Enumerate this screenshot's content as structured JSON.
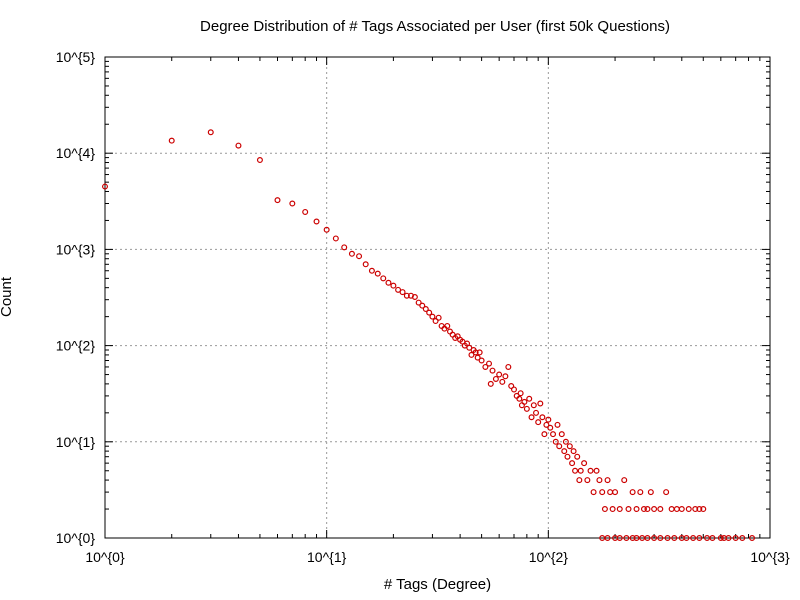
{
  "chart_data": {
    "type": "scatter",
    "title": "Degree Distribution of # Tags Associated per User (first 50k Questions)",
    "xlabel": "# Tags (Degree)",
    "ylabel": "Count",
    "xscale": "log",
    "yscale": "log",
    "xlim": [
      1,
      1000
    ],
    "ylim": [
      1,
      100000
    ],
    "grid": true,
    "xticks": [
      1,
      10,
      100,
      1000
    ],
    "yticks": [
      1,
      10,
      100,
      1000,
      10000,
      100000
    ],
    "xtick_labels": [
      "10^{0}",
      "10^{1}",
      "10^{2}",
      "10^{3}"
    ],
    "ytick_labels": [
      "10^{0}",
      "10^{1}",
      "10^{2}",
      "10^{3}",
      "10^{4}",
      "10^{5}"
    ],
    "colors": {
      "marker": "#cc0000",
      "grid": "#999999",
      "axis": "#000000"
    },
    "marker": "circle",
    "series": [
      {
        "points": [
          [
            1,
            4500
          ],
          [
            2,
            13500
          ],
          [
            3,
            16500
          ],
          [
            4,
            12000
          ],
          [
            5,
            8500
          ],
          [
            6,
            3250
          ],
          [
            7,
            3000
          ],
          [
            8,
            2450
          ],
          [
            9,
            1950
          ],
          [
            10,
            1600
          ],
          [
            11,
            1300
          ],
          [
            12,
            1050
          ],
          [
            13,
            900
          ],
          [
            14,
            850
          ],
          [
            15,
            700
          ],
          [
            16,
            600
          ],
          [
            17,
            560
          ],
          [
            18,
            500
          ],
          [
            19,
            450
          ],
          [
            20,
            420
          ],
          [
            21,
            380
          ],
          [
            22,
            360
          ],
          [
            23,
            330
          ],
          [
            24,
            330
          ],
          [
            25,
            320
          ],
          [
            26,
            280
          ],
          [
            27,
            260
          ],
          [
            28,
            240
          ],
          [
            29,
            220
          ],
          [
            30,
            200
          ],
          [
            31,
            180
          ],
          [
            32,
            195
          ],
          [
            33,
            160
          ],
          [
            34,
            150
          ],
          [
            35,
            160
          ],
          [
            36,
            140
          ],
          [
            37,
            130
          ],
          [
            38,
            120
          ],
          [
            39,
            125
          ],
          [
            40,
            115
          ],
          [
            41,
            110
          ],
          [
            42,
            100
          ],
          [
            43,
            105
          ],
          [
            44,
            95
          ],
          [
            45,
            80
          ],
          [
            46,
            90
          ],
          [
            47,
            85
          ],
          [
            48,
            75
          ],
          [
            49,
            85
          ],
          [
            50,
            70
          ],
          [
            52,
            60
          ],
          [
            54,
            65
          ],
          [
            55,
            40
          ],
          [
            56,
            55
          ],
          [
            58,
            45
          ],
          [
            60,
            50
          ],
          [
            62,
            42
          ],
          [
            64,
            48
          ],
          [
            66,
            60
          ],
          [
            68,
            38
          ],
          [
            70,
            35
          ],
          [
            72,
            30
          ],
          [
            74,
            28
          ],
          [
            75,
            32
          ],
          [
            76,
            24
          ],
          [
            78,
            26
          ],
          [
            80,
            22
          ],
          [
            82,
            28
          ],
          [
            84,
            18
          ],
          [
            86,
            24
          ],
          [
            88,
            20
          ],
          [
            90,
            16
          ],
          [
            92,
            25
          ],
          [
            94,
            18
          ],
          [
            96,
            12
          ],
          [
            98,
            15
          ],
          [
            100,
            17
          ],
          [
            102,
            14
          ],
          [
            105,
            12
          ],
          [
            108,
            10
          ],
          [
            110,
            15
          ],
          [
            112,
            9
          ],
          [
            115,
            12
          ],
          [
            118,
            8
          ],
          [
            120,
            10
          ],
          [
            122,
            7
          ],
          [
            125,
            9
          ],
          [
            128,
            6
          ],
          [
            130,
            8
          ],
          [
            132,
            5
          ],
          [
            135,
            7
          ],
          [
            138,
            4
          ],
          [
            140,
            5
          ],
          [
            145,
            6
          ],
          [
            150,
            4
          ],
          [
            155,
            5
          ],
          [
            160,
            3
          ],
          [
            165,
            5
          ],
          [
            170,
            4
          ],
          [
            175,
            3
          ],
          [
            180,
            2
          ],
          [
            185,
            4
          ],
          [
            190,
            3
          ],
          [
            195,
            2
          ],
          [
            200,
            3
          ],
          [
            210,
            2
          ],
          [
            220,
            4
          ],
          [
            230,
            2
          ],
          [
            240,
            3
          ],
          [
            250,
            2
          ],
          [
            260,
            3
          ],
          [
            270,
            2
          ],
          [
            280,
            2
          ],
          [
            290,
            3
          ],
          [
            300,
            2
          ],
          [
            320,
            2
          ],
          [
            340,
            3
          ],
          [
            360,
            2
          ],
          [
            380,
            2
          ],
          [
            400,
            2
          ],
          [
            430,
            2
          ],
          [
            460,
            2
          ],
          [
            480,
            2
          ],
          [
            500,
            2
          ],
          [
            175,
            1
          ],
          [
            185,
            1
          ],
          [
            200,
            1
          ],
          [
            210,
            1
          ],
          [
            225,
            1
          ],
          [
            240,
            1
          ],
          [
            250,
            1
          ],
          [
            265,
            1
          ],
          [
            280,
            1
          ],
          [
            300,
            1
          ],
          [
            320,
            1
          ],
          [
            345,
            1
          ],
          [
            370,
            1
          ],
          [
            400,
            1
          ],
          [
            420,
            1
          ],
          [
            450,
            1
          ],
          [
            480,
            1
          ],
          [
            520,
            1
          ],
          [
            550,
            1
          ],
          [
            600,
            1
          ],
          [
            620,
            1
          ],
          [
            650,
            1
          ],
          [
            700,
            1
          ],
          [
            750,
            1
          ],
          [
            830,
            1
          ]
        ]
      }
    ]
  }
}
